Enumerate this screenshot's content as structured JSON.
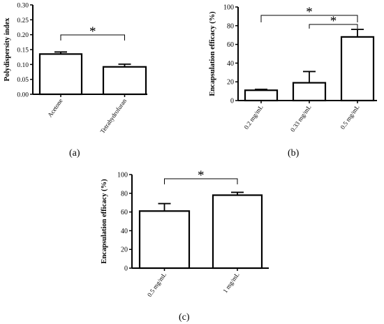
{
  "labels": {
    "a": "(a)",
    "b": "(b)",
    "c": "(c)"
  },
  "significance": "*",
  "chart_data": [
    {
      "id": "a",
      "type": "bar",
      "ylabel": "Polydispersity index",
      "ylim": [
        0,
        0.3
      ],
      "yticks": [
        "0.00",
        "0.05",
        "0.10",
        "0.15",
        "0.20",
        "0.25",
        "0.30"
      ],
      "categories": [
        "Acetone",
        "Tetrahydrofuran"
      ],
      "values": [
        0.135,
        0.092
      ],
      "errors": [
        0.007,
        0.009
      ],
      "significance": [
        {
          "from": 0,
          "to": 1,
          "label": "*"
        }
      ]
    },
    {
      "id": "b",
      "type": "bar",
      "ylabel": "Encapsulation efficacy (%)",
      "ylim": [
        0,
        100
      ],
      "yticks": [
        "0",
        "20",
        "40",
        "60",
        "80",
        "100"
      ],
      "categories": [
        "0.2 mg/mL",
        "0.33 mg/mL",
        "0.5 mg/mL"
      ],
      "values": [
        11,
        19,
        68
      ],
      "errors": [
        1,
        12,
        8
      ],
      "significance": [
        {
          "from": 0,
          "to": 2,
          "label": "*"
        },
        {
          "from": 1,
          "to": 2,
          "label": "*"
        }
      ]
    },
    {
      "id": "c",
      "type": "bar",
      "ylabel": "Encapsulation efficacy (%)",
      "ylim": [
        0,
        100
      ],
      "yticks": [
        "0",
        "20",
        "40",
        "60",
        "80",
        "100"
      ],
      "categories": [
        "0.5 mg/mL",
        "1 mg/mL"
      ],
      "values": [
        61,
        78
      ],
      "errors": [
        8,
        3
      ],
      "significance": [
        {
          "from": 0,
          "to": 1,
          "label": "*"
        }
      ]
    }
  ]
}
